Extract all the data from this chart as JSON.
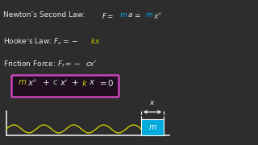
{
  "bg_color": "#2d2d2d",
  "box_border": "#cc44bb",
  "box_bg": "#1e0e1e",
  "wave_color": "#cccc00",
  "mass_color": "#00aadd",
  "text_white": "#e8e8e8",
  "text_cyan": "#00aaff",
  "text_yellow": "#cccc00",
  "text_green": "#aaccaa",
  "font_size_main": 6.5,
  "font_size_box": 7.5
}
